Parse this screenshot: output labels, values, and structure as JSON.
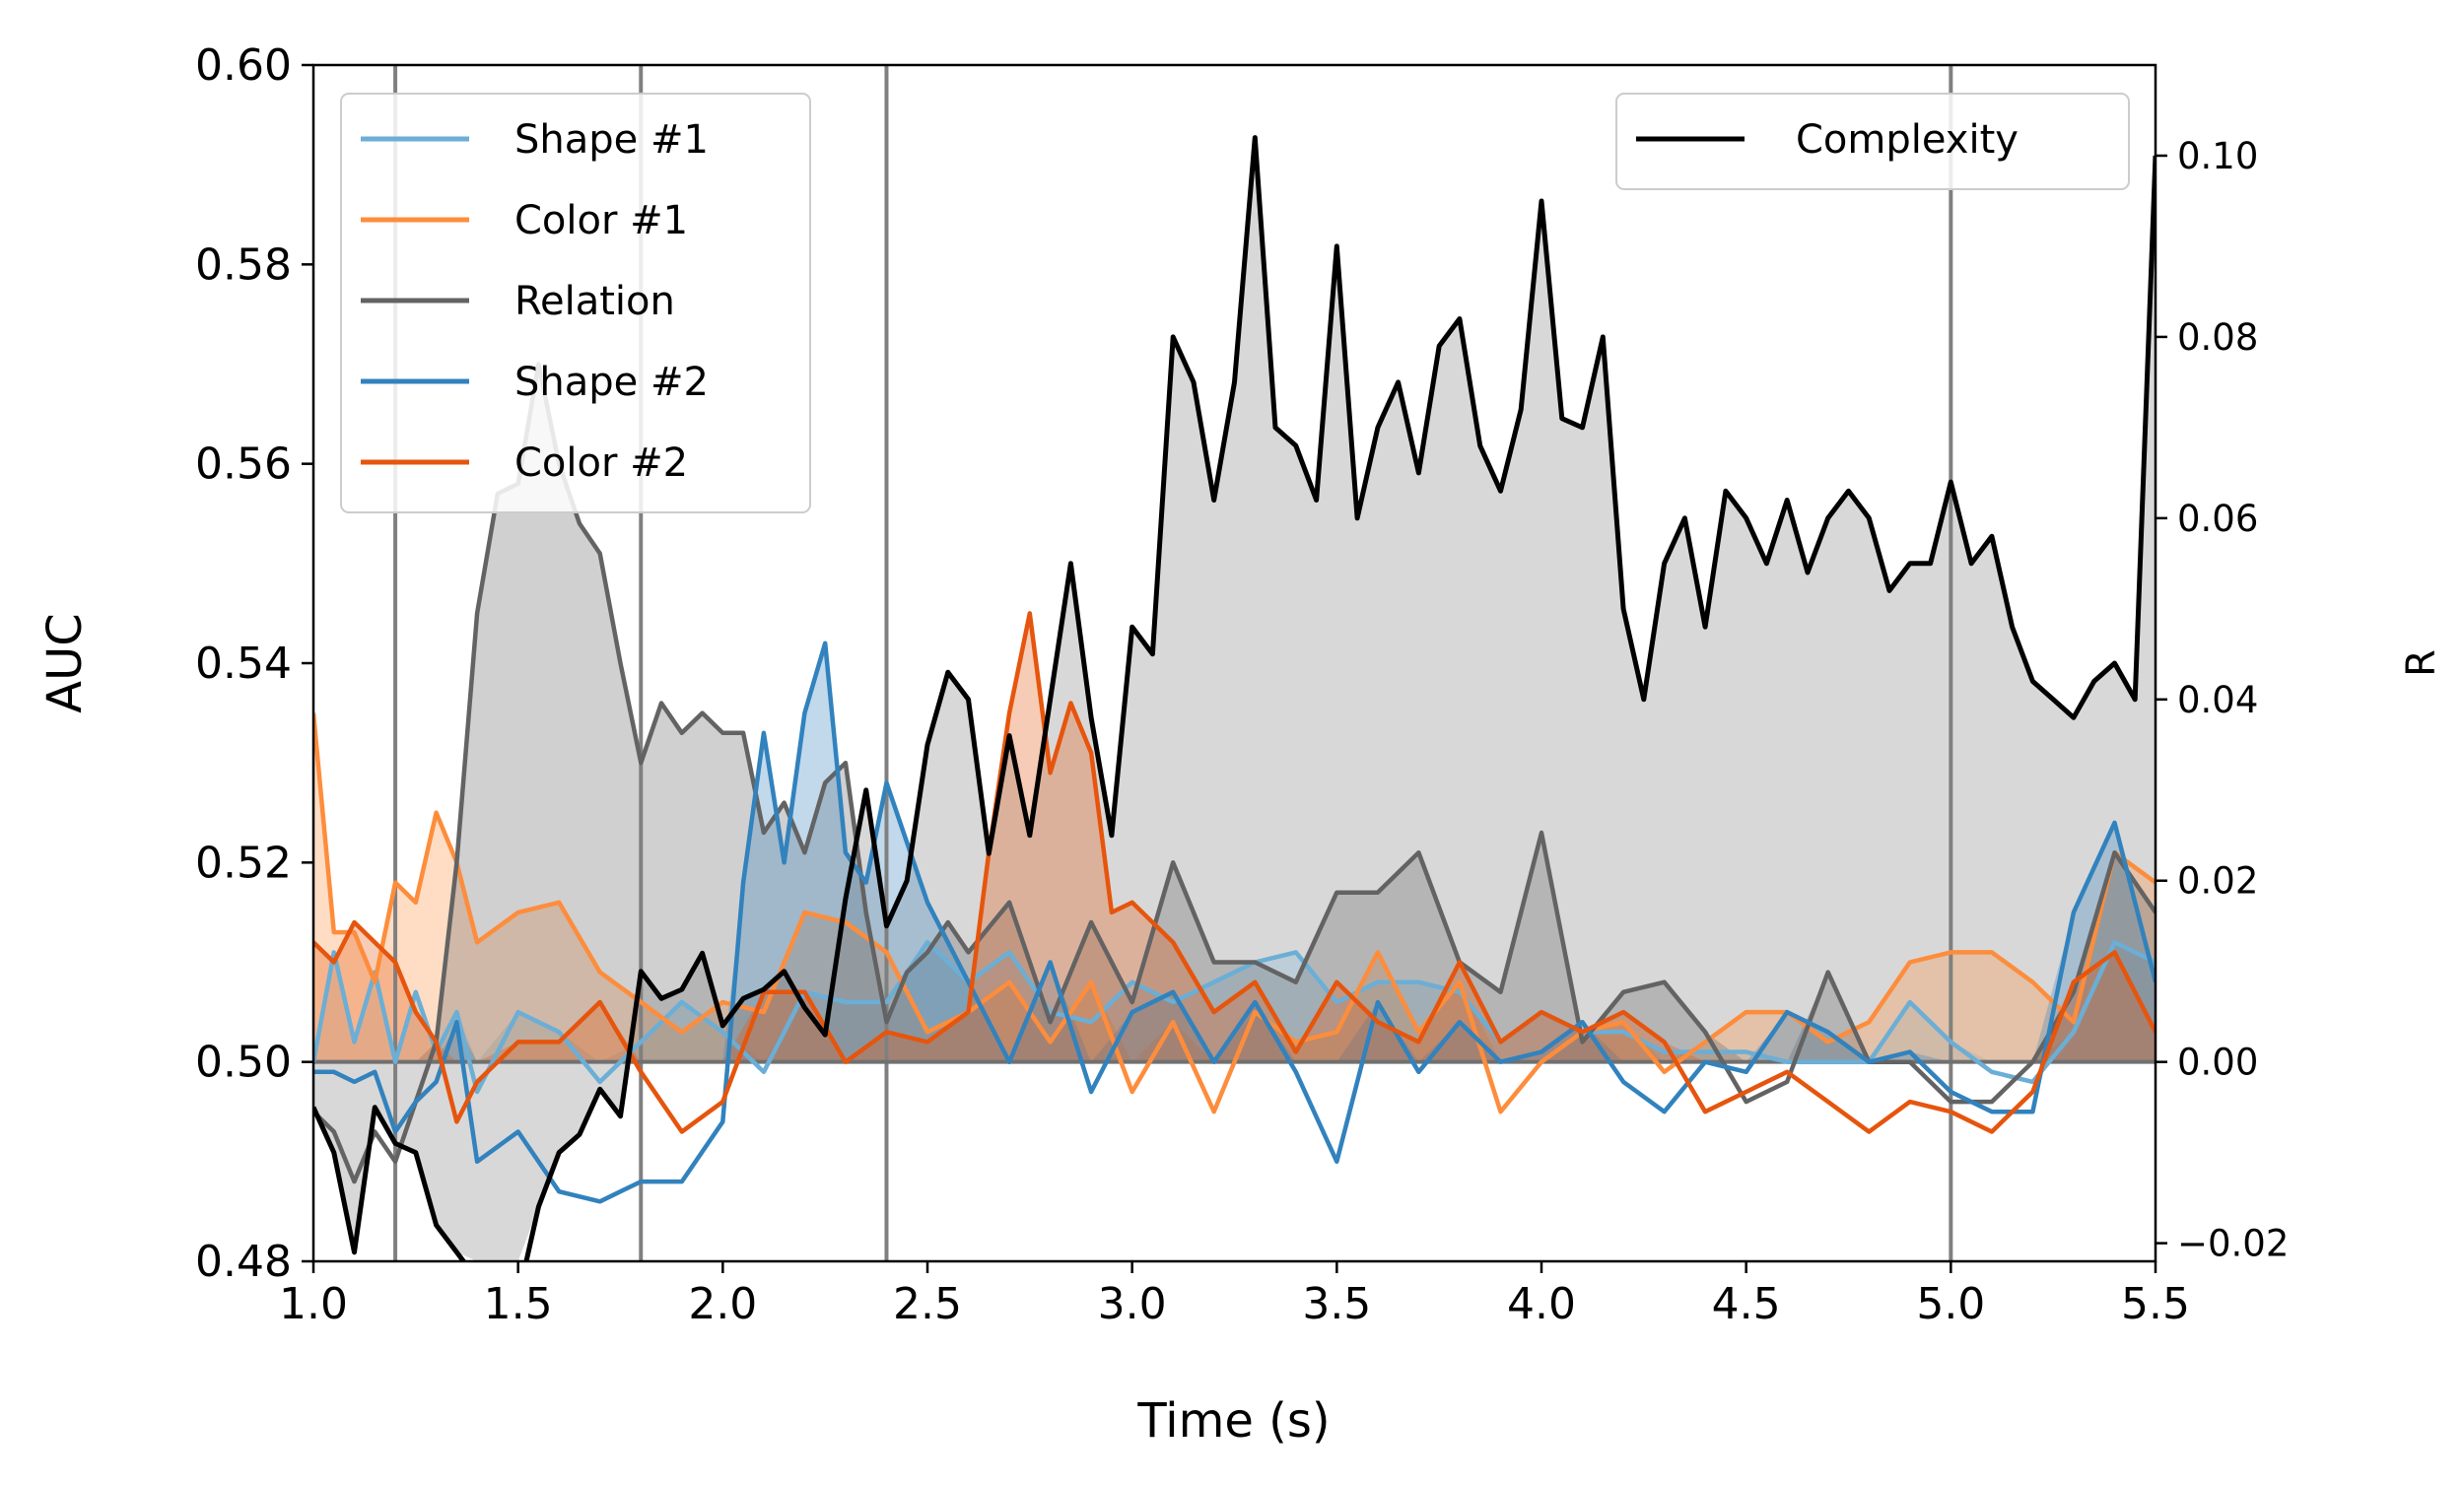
{
  "chart_data": {
    "type": "line",
    "title": "",
    "xlabel": "Time (s)",
    "ylabel_left": "AUC",
    "ylabel_right": "R",
    "xlim": [
      1.0,
      5.5
    ],
    "ylim_left": [
      0.48,
      0.6
    ],
    "ylim_right": [
      -0.022,
      0.11
    ],
    "x_ticks": [
      "1.0",
      "1.5",
      "2.0",
      "2.5",
      "3.0",
      "3.5",
      "4.0",
      "4.5",
      "5.0",
      "5.5"
    ],
    "y_ticks_left": [
      "0.48",
      "0.50",
      "0.52",
      "0.54",
      "0.56",
      "0.58",
      "0.60"
    ],
    "y_ticks_right": [
      "−0.02",
      "0.00",
      "0.02",
      "0.04",
      "0.06",
      "0.08",
      "0.10"
    ],
    "vertical_lines_x": [
      1.2,
      1.8,
      2.4,
      5.0
    ],
    "baseline": 0.5,
    "legend_left_position": "upper-left",
    "legend_right_position": "upper-right",
    "series": [
      {
        "name": "Shape #1",
        "axis": "left",
        "color": "#6baed6",
        "x": [
          1.0,
          1.05,
          1.1,
          1.15,
          1.2,
          1.25,
          1.3,
          1.35,
          1.4,
          1.5,
          1.6,
          1.7,
          1.8,
          1.9,
          2.0,
          2.1,
          2.2,
          2.3,
          2.4,
          2.5,
          2.6,
          2.7,
          2.8,
          2.9,
          3.0,
          3.1,
          3.2,
          3.3,
          3.4,
          3.5,
          3.6,
          3.7,
          3.8,
          3.9,
          4.0,
          4.1,
          4.2,
          4.3,
          4.4,
          4.5,
          4.6,
          4.7,
          4.8,
          4.9,
          5.0,
          5.1,
          5.2,
          5.3,
          5.4,
          5.5
        ],
        "y": [
          0.5,
          0.511,
          0.502,
          0.509,
          0.5,
          0.507,
          0.501,
          0.505,
          0.497,
          0.505,
          0.503,
          0.498,
          0.502,
          0.506,
          0.503,
          0.499,
          0.507,
          0.506,
          0.506,
          0.512,
          0.508,
          0.511,
          0.505,
          0.504,
          0.508,
          0.506,
          0.508,
          0.51,
          0.511,
          0.506,
          0.508,
          0.508,
          0.507,
          0.502,
          0.505,
          0.503,
          0.503,
          0.501,
          0.501,
          0.501,
          0.5,
          0.5,
          0.5,
          0.506,
          0.502,
          0.499,
          0.498,
          0.503,
          0.512,
          0.51
        ]
      },
      {
        "name": "Color #1",
        "axis": "left",
        "color": "#fd8d3c",
        "x": [
          1.0,
          1.05,
          1.1,
          1.15,
          1.2,
          1.25,
          1.3,
          1.35,
          1.4,
          1.5,
          1.6,
          1.7,
          1.8,
          1.9,
          2.0,
          2.1,
          2.2,
          2.3,
          2.4,
          2.5,
          2.6,
          2.7,
          2.8,
          2.9,
          3.0,
          3.1,
          3.2,
          3.3,
          3.4,
          3.5,
          3.6,
          3.7,
          3.8,
          3.9,
          4.0,
          4.1,
          4.2,
          4.3,
          4.4,
          4.5,
          4.6,
          4.7,
          4.8,
          4.9,
          5.0,
          5.1,
          5.2,
          5.3,
          5.4,
          5.5
        ],
        "y": [
          0.535,
          0.513,
          0.513,
          0.508,
          0.518,
          0.516,
          0.525,
          0.52,
          0.512,
          0.515,
          0.516,
          0.509,
          0.506,
          0.503,
          0.506,
          0.505,
          0.515,
          0.514,
          0.511,
          0.503,
          0.505,
          0.508,
          0.502,
          0.508,
          0.497,
          0.504,
          0.495,
          0.505,
          0.502,
          0.503,
          0.511,
          0.503,
          0.508,
          0.495,
          0.5,
          0.503,
          0.504,
          0.499,
          0.502,
          0.505,
          0.505,
          0.502,
          0.504,
          0.51,
          0.511,
          0.511,
          0.508,
          0.504,
          0.521,
          0.518
        ]
      },
      {
        "name": "Relation",
        "axis": "left",
        "color": "#636363",
        "x": [
          1.0,
          1.05,
          1.1,
          1.15,
          1.2,
          1.25,
          1.3,
          1.35,
          1.4,
          1.45,
          1.5,
          1.55,
          1.6,
          1.65,
          1.7,
          1.75,
          1.8,
          1.85,
          1.9,
          1.95,
          2.0,
          2.05,
          2.1,
          2.15,
          2.2,
          2.25,
          2.3,
          2.35,
          2.4,
          2.45,
          2.5,
          2.55,
          2.6,
          2.7,
          2.8,
          2.9,
          3.0,
          3.1,
          3.2,
          3.3,
          3.4,
          3.5,
          3.6,
          3.7,
          3.8,
          3.9,
          4.0,
          4.1,
          4.2,
          4.3,
          4.4,
          4.5,
          4.6,
          4.7,
          4.8,
          4.9,
          5.0,
          5.1,
          5.2,
          5.3,
          5.4,
          5.5
        ],
        "y": [
          0.495,
          0.493,
          0.488,
          0.493,
          0.49,
          0.496,
          0.502,
          0.52,
          0.545,
          0.557,
          0.558,
          0.57,
          0.56,
          0.554,
          0.551,
          0.54,
          0.53,
          0.536,
          0.533,
          0.535,
          0.533,
          0.533,
          0.523,
          0.526,
          0.521,
          0.528,
          0.53,
          0.515,
          0.504,
          0.509,
          0.511,
          0.514,
          0.511,
          0.516,
          0.504,
          0.514,
          0.506,
          0.52,
          0.51,
          0.51,
          0.508,
          0.517,
          0.517,
          0.521,
          0.51,
          0.507,
          0.523,
          0.502,
          0.507,
          0.508,
          0.503,
          0.496,
          0.498,
          0.509,
          0.5,
          0.5,
          0.496,
          0.496,
          0.5,
          0.507,
          0.521,
          0.515
        ]
      },
      {
        "name": "Shape #2",
        "axis": "left",
        "color": "#3182bd",
        "x": [
          1.0,
          1.05,
          1.1,
          1.15,
          1.2,
          1.25,
          1.3,
          1.35,
          1.4,
          1.5,
          1.6,
          1.7,
          1.8,
          1.9,
          2.0,
          2.05,
          2.1,
          2.15,
          2.2,
          2.25,
          2.3,
          2.35,
          2.4,
          2.5,
          2.6,
          2.7,
          2.8,
          2.9,
          3.0,
          3.1,
          3.2,
          3.3,
          3.4,
          3.5,
          3.6,
          3.7,
          3.8,
          3.9,
          4.0,
          4.1,
          4.2,
          4.3,
          4.4,
          4.5,
          4.6,
          4.7,
          4.8,
          4.9,
          5.0,
          5.1,
          5.2,
          5.3,
          5.4,
          5.5
        ],
        "y": [
          0.499,
          0.499,
          0.498,
          0.499,
          0.493,
          0.496,
          0.498,
          0.504,
          0.49,
          0.493,
          0.487,
          0.486,
          0.488,
          0.488,
          0.494,
          0.518,
          0.533,
          0.52,
          0.535,
          0.542,
          0.521,
          0.518,
          0.528,
          0.516,
          0.508,
          0.5,
          0.51,
          0.497,
          0.505,
          0.507,
          0.5,
          0.506,
          0.499,
          0.49,
          0.506,
          0.499,
          0.504,
          0.5,
          0.501,
          0.504,
          0.498,
          0.495,
          0.5,
          0.499,
          0.505,
          0.503,
          0.5,
          0.501,
          0.497,
          0.495,
          0.495,
          0.515,
          0.524,
          0.508
        ]
      },
      {
        "name": "Color #2",
        "axis": "left",
        "color": "#e6550d",
        "x": [
          1.0,
          1.05,
          1.1,
          1.15,
          1.2,
          1.25,
          1.3,
          1.35,
          1.4,
          1.5,
          1.6,
          1.7,
          1.8,
          1.9,
          2.0,
          2.1,
          2.2,
          2.3,
          2.4,
          2.5,
          2.6,
          2.65,
          2.7,
          2.75,
          2.8,
          2.85,
          2.9,
          2.95,
          3.0,
          3.1,
          3.2,
          3.3,
          3.4,
          3.5,
          3.6,
          3.7,
          3.8,
          3.9,
          4.0,
          4.1,
          4.2,
          4.3,
          4.4,
          4.5,
          4.6,
          4.7,
          4.8,
          4.9,
          5.0,
          5.1,
          5.2,
          5.3,
          5.4,
          5.5
        ],
        "y": [
          0.512,
          0.51,
          0.514,
          0.512,
          0.51,
          0.505,
          0.502,
          0.494,
          0.498,
          0.502,
          0.502,
          0.506,
          0.499,
          0.493,
          0.496,
          0.507,
          0.507,
          0.5,
          0.503,
          0.502,
          0.505,
          0.521,
          0.535,
          0.545,
          0.529,
          0.536,
          0.531,
          0.515,
          0.516,
          0.512,
          0.505,
          0.508,
          0.501,
          0.508,
          0.504,
          0.502,
          0.51,
          0.502,
          0.505,
          0.503,
          0.505,
          0.502,
          0.495,
          0.497,
          0.499,
          0.496,
          0.493,
          0.496,
          0.495,
          0.493,
          0.497,
          0.508,
          0.511,
          0.503
        ]
      },
      {
        "name": "Complexity",
        "axis": "right",
        "color": "#000000",
        "x": [
          1.0,
          1.05,
          1.1,
          1.15,
          1.2,
          1.25,
          1.3,
          1.35,
          1.4,
          1.45,
          1.5,
          1.55,
          1.6,
          1.65,
          1.7,
          1.75,
          1.8,
          1.85,
          1.9,
          1.95,
          2.0,
          2.05,
          2.1,
          2.15,
          2.2,
          2.25,
          2.3,
          2.35,
          2.4,
          2.45,
          2.5,
          2.55,
          2.6,
          2.65,
          2.7,
          2.75,
          2.8,
          2.85,
          2.9,
          2.95,
          3.0,
          3.05,
          3.1,
          3.15,
          3.2,
          3.25,
          3.3,
          3.35,
          3.4,
          3.45,
          3.5,
          3.55,
          3.6,
          3.65,
          3.7,
          3.75,
          3.8,
          3.85,
          3.9,
          3.95,
          4.0,
          4.05,
          4.1,
          4.15,
          4.2,
          4.25,
          4.3,
          4.35,
          4.4,
          4.45,
          4.5,
          4.55,
          4.6,
          4.65,
          4.7,
          4.75,
          4.8,
          4.85,
          4.9,
          4.95,
          5.0,
          5.05,
          5.1,
          5.15,
          5.2,
          5.25,
          5.3,
          5.35,
          5.4,
          5.45,
          5.5
        ],
        "y": [
          -0.005,
          -0.01,
          -0.021,
          -0.005,
          -0.009,
          -0.01,
          -0.018,
          -0.021,
          -0.024,
          -0.03,
          -0.026,
          -0.016,
          -0.01,
          -0.008,
          -0.003,
          -0.006,
          0.01,
          0.007,
          0.008,
          0.012,
          0.004,
          0.007,
          0.008,
          0.01,
          0.006,
          0.003,
          0.018,
          0.03,
          0.015,
          0.02,
          0.035,
          0.043,
          0.04,
          0.023,
          0.036,
          0.025,
          0.04,
          0.055,
          0.038,
          0.025,
          0.048,
          0.045,
          0.08,
          0.075,
          0.062,
          0.075,
          0.102,
          0.07,
          0.068,
          0.062,
          0.09,
          0.06,
          0.07,
          0.075,
          0.065,
          0.079,
          0.082,
          0.068,
          0.063,
          0.072,
          0.095,
          0.071,
          0.07,
          0.08,
          0.05,
          0.04,
          0.055,
          0.06,
          0.048,
          0.063,
          0.06,
          0.055,
          0.062,
          0.054,
          0.06,
          0.063,
          0.06,
          0.052,
          0.055,
          0.055,
          0.064,
          0.055,
          0.058,
          0.048,
          0.042,
          0.04,
          0.038,
          0.042,
          0.044,
          0.04,
          0.1
        ]
      }
    ]
  }
}
